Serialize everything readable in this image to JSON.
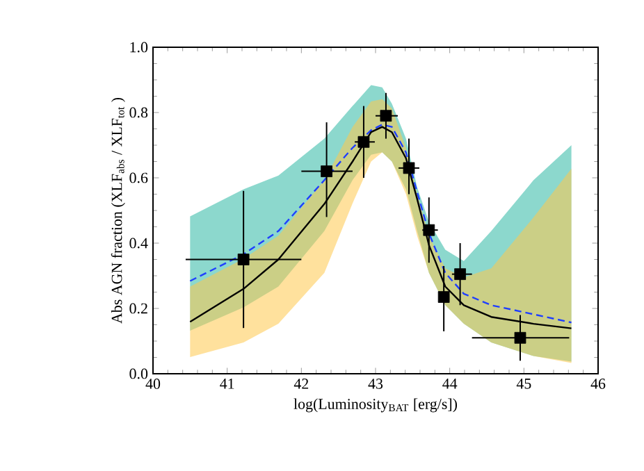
{
  "chart_data": {
    "type": "scatter",
    "xlabel": "log(Luminosity$_{BAT}$ [erg/s])",
    "ylabel": "Abs AGN fraction (XLF$_{abs}$ / XLF$_{tot}$ )",
    "xlim": [
      40,
      46
    ],
    "ylim": [
      0,
      1.0
    ],
    "xticks": [
      40,
      41,
      42,
      43,
      44,
      45,
      46
    ],
    "yticks": [
      {
        "value": 0,
        "label": "0.0"
      },
      {
        "value": 0.2,
        "label": "0.2"
      },
      {
        "value": 0.4,
        "label": "0.4"
      },
      {
        "value": 0.6,
        "label": "0.6"
      },
      {
        "value": 0.8,
        "label": "0.8"
      },
      {
        "value": 1.0,
        "label": "1.0"
      }
    ],
    "grid": false,
    "series": [
      {
        "type": "line",
        "color": "#1f3fff",
        "line_style": "dashed",
        "marker": "none",
        "x": [
          40.5,
          41.22,
          41.69,
          42.31,
          42.69,
          42.94,
          43.09,
          43.22,
          43.41,
          43.56,
          43.72,
          43.94,
          44.19,
          44.56,
          45.13,
          45.64
        ],
        "values": [
          0.284,
          0.366,
          0.437,
          0.593,
          0.692,
          0.746,
          0.763,
          0.756,
          0.678,
          0.557,
          0.43,
          0.309,
          0.245,
          0.21,
          0.182,
          0.157
        ],
        "upper": [
          0.482,
          0.565,
          0.607,
          0.72,
          0.82,
          0.884,
          0.877,
          0.827,
          0.72,
          0.572,
          0.465,
          0.38,
          0.345,
          0.437,
          0.593,
          0.7
        ],
        "lower": [
          0.132,
          0.203,
          0.267,
          0.437,
          0.593,
          0.671,
          0.678,
          0.65,
          0.565,
          0.437,
          0.309,
          0.21,
          0.153,
          0.096,
          0.054,
          0.037
        ]
      },
      {
        "type": "line",
        "color": "#000000",
        "line_style": "solid",
        "marker": "none",
        "x": [
          40.5,
          41.22,
          41.69,
          42.31,
          42.69,
          42.94,
          43.09,
          43.22,
          43.41,
          43.56,
          43.72,
          43.94,
          44.19,
          44.56,
          45.13,
          45.64
        ],
        "values": [
          0.159,
          0.26,
          0.35,
          0.52,
          0.65,
          0.74,
          0.756,
          0.74,
          0.66,
          0.536,
          0.394,
          0.267,
          0.21,
          0.174,
          0.153,
          0.139
        ],
        "upper": [
          0.267,
          0.352,
          0.423,
          0.593,
          0.756,
          0.834,
          0.841,
          0.813,
          0.692,
          0.55,
          0.423,
          0.323,
          0.295,
          0.323,
          0.479,
          0.628
        ],
        "lower": [
          0.051,
          0.096,
          0.153,
          0.309,
          0.522,
          0.65,
          0.678,
          0.65,
          0.55,
          0.423,
          0.309,
          0.21,
          0.153,
          0.096,
          0.054,
          0.033
        ]
      },
      {
        "color": "#000000",
        "marker": "square",
        "x": [
          41.22,
          42.34,
          42.84,
          43.14,
          43.45,
          43.72,
          43.92,
          44.14,
          44.95
        ],
        "values": [
          0.35,
          0.62,
          0.71,
          0.79,
          0.63,
          0.44,
          0.235,
          0.305,
          0.11
        ],
        "errors": [
          [
            0.14,
            0.56
          ],
          [
            0.48,
            0.77
          ],
          [
            0.6,
            0.82
          ],
          [
            0.72,
            0.86
          ],
          [
            0.55,
            0.72
          ],
          [
            0.34,
            0.54
          ],
          [
            0.13,
            0.33
          ],
          [
            0.21,
            0.4
          ],
          [
            0.04,
            0.18
          ]
        ],
        "xerrors": [
          [
            40.44,
            42.0
          ],
          [
            42.0,
            42.69
          ],
          [
            42.72,
            42.99
          ],
          [
            43.0,
            43.3
          ],
          [
            43.31,
            43.59
          ],
          [
            43.63,
            43.84
          ],
          null,
          [
            44.03,
            44.3
          ],
          [
            44.3,
            45.61
          ]
        ]
      }
    ]
  }
}
